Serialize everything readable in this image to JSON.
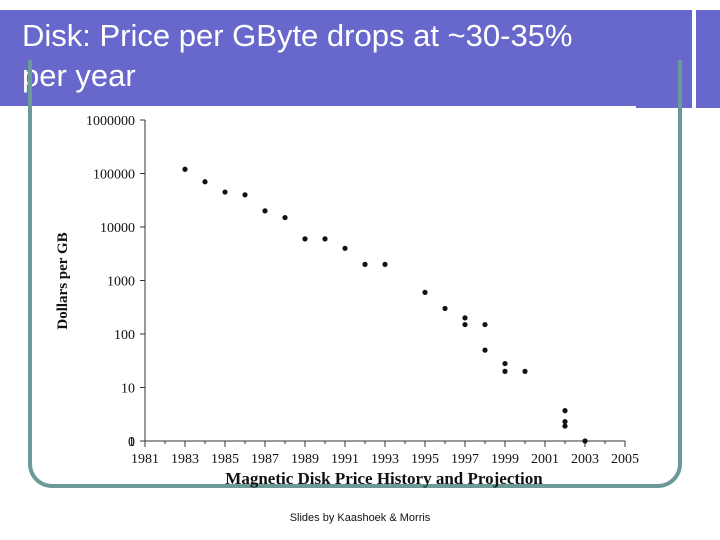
{
  "slide": {
    "title": "Disk: Price per GByte drops  at ~30-35%\nper year",
    "footer": "Slides by Kaashoek & Morris"
  },
  "colors": {
    "title_bar": "#6767cc",
    "frame": "#6b9a98",
    "marker": "#111111"
  },
  "chart_data": {
    "type": "scatter",
    "title": "Magnetic Disk Price History and Projection",
    "xlabel": "",
    "ylabel": "Dollars per GB",
    "xlim": [
      1981,
      2005
    ],
    "ylim_log10": [
      0,
      6
    ],
    "x_ticks": [
      1981,
      1983,
      1985,
      1987,
      1989,
      1991,
      1993,
      1995,
      1997,
      1999,
      2001,
      2003,
      2005
    ],
    "y_ticks": [
      {
        "value": 1000000,
        "label": "1000000"
      },
      {
        "value": 100000,
        "label": "100000"
      },
      {
        "value": 10000,
        "label": "10000"
      },
      {
        "value": 1000,
        "label": "1000"
      },
      {
        "value": 100,
        "label": "100"
      },
      {
        "value": 10,
        "label": "10"
      },
      {
        "value": 1,
        "label": "1"
      },
      {
        "value": 0,
        "label": "0"
      }
    ],
    "grid": false,
    "series": [
      {
        "name": "Dollars per GB",
        "points": [
          {
            "x": 1983,
            "y": 120000
          },
          {
            "x": 1984,
            "y": 70000
          },
          {
            "x": 1985,
            "y": 45000
          },
          {
            "x": 1986,
            "y": 40000
          },
          {
            "x": 1987,
            "y": 20000
          },
          {
            "x": 1988,
            "y": 15000
          },
          {
            "x": 1989,
            "y": 6000
          },
          {
            "x": 1990,
            "y": 6000
          },
          {
            "x": 1991,
            "y": 4000
          },
          {
            "x": 1992,
            "y": 2000
          },
          {
            "x": 1993,
            "y": 2000
          },
          {
            "x": 1995,
            "y": 600
          },
          {
            "x": 1996,
            "y": 300
          },
          {
            "x": 1997,
            "y": 200
          },
          {
            "x": 1997,
            "y": 150
          },
          {
            "x": 1998,
            "y": 150
          },
          {
            "x": 1998,
            "y": 50
          },
          {
            "x": 1999,
            "y": 28
          },
          {
            "x": 1999,
            "y": 20
          },
          {
            "x": 2000,
            "y": 20
          },
          {
            "x": 2002,
            "y": 3.7
          },
          {
            "x": 2002,
            "y": 2.3
          },
          {
            "x": 2002,
            "y": 1.9
          },
          {
            "x": 2003,
            "y": 1
          }
        ]
      }
    ]
  }
}
